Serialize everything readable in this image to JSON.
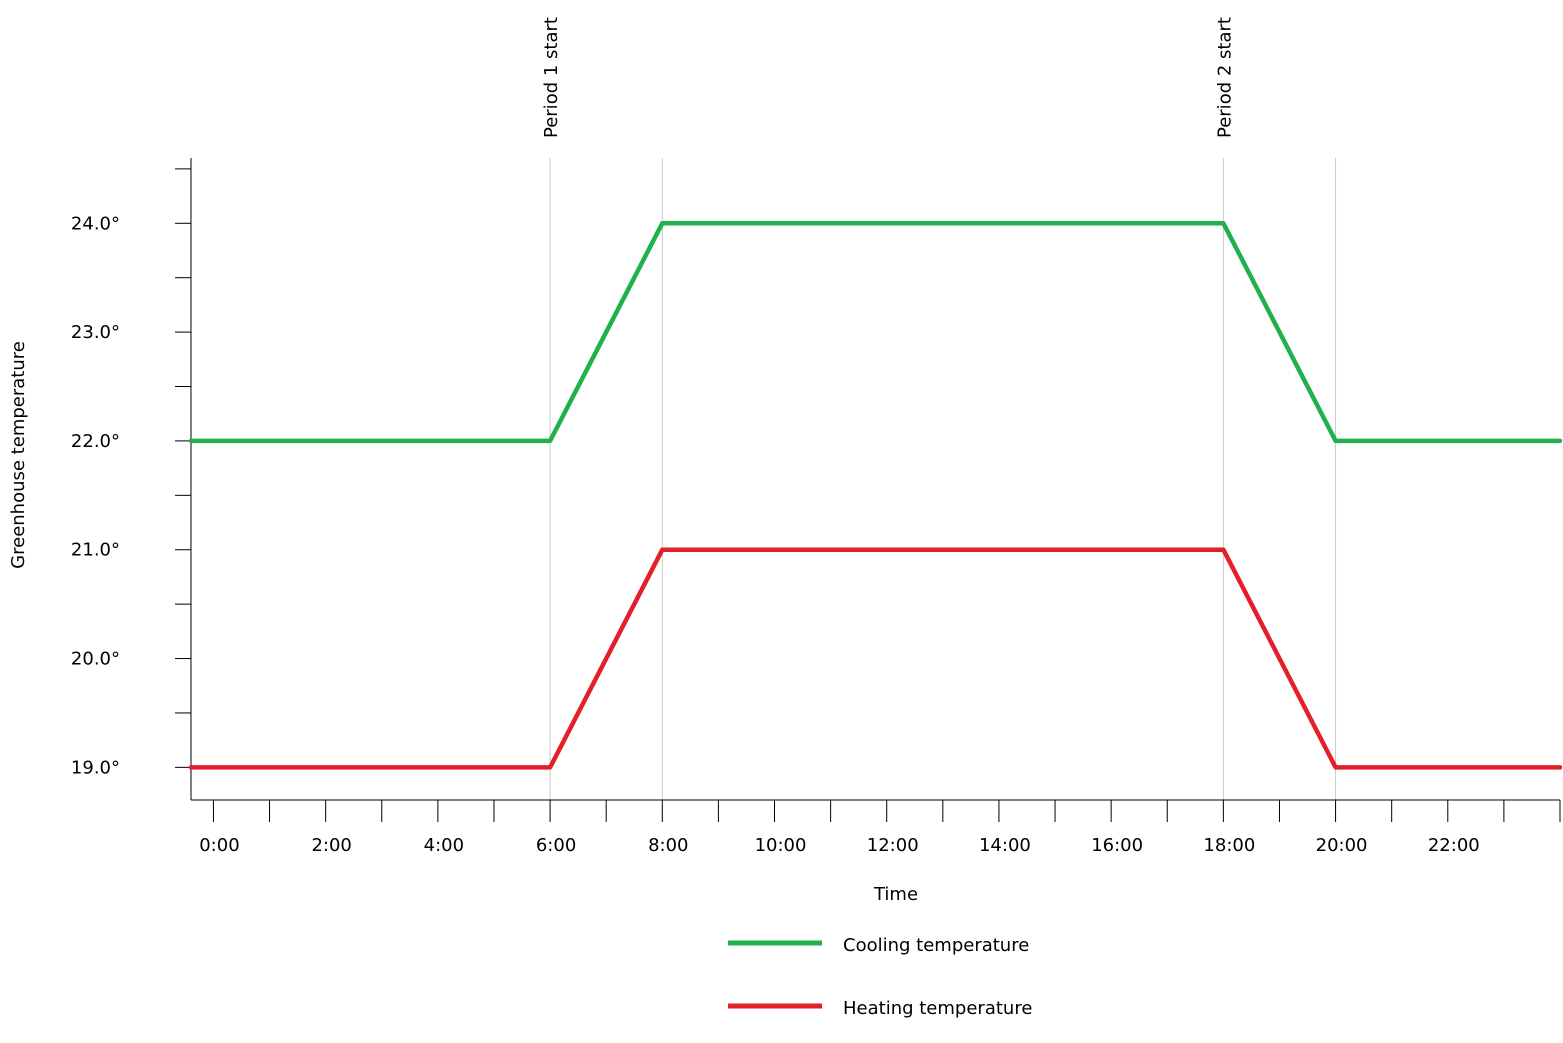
{
  "chart_data": {
    "type": "line",
    "x": [
      "0:00",
      "1:00",
      "2:00",
      "3:00",
      "4:00",
      "5:00",
      "6:00",
      "7:00",
      "8:00",
      "9:00",
      "10:00",
      "11:00",
      "12:00",
      "13:00",
      "14:00",
      "15:00",
      "16:00",
      "17:00",
      "18:00",
      "19:00",
      "20:00",
      "21:00",
      "22:00",
      "23:00"
    ],
    "x_tick_labels": [
      "0:00",
      "2:00",
      "4:00",
      "6:00",
      "8:00",
      "10:00",
      "12:00",
      "14:00",
      "16:00",
      "18:00",
      "20:00",
      "22:00"
    ],
    "y_tick_labels": [
      "19.0°",
      "20.0°",
      "21.0°",
      "22.0°",
      "23.0°",
      "24.0°"
    ],
    "y_ticks": [
      19,
      20,
      21,
      22,
      23,
      24
    ],
    "xlabel": "Time",
    "ylabel": "Greenhouse temperature",
    "ylim": [
      18.7,
      24.6
    ],
    "xlim": [
      -0.4,
      24.0
    ],
    "grid": false,
    "legend": "bottom",
    "series": [
      {
        "name": "Cooling temperature",
        "color": "#22b04b",
        "points": [
          [
            -0.4,
            22.0
          ],
          [
            6.0,
            22.0
          ],
          [
            8.0,
            24.0
          ],
          [
            18.0,
            24.0
          ],
          [
            20.0,
            22.0
          ],
          [
            24.0,
            22.0
          ]
        ]
      },
      {
        "name": "Heating temperature",
        "color": "#e3202a",
        "points": [
          [
            -0.4,
            19.0
          ],
          [
            6.0,
            19.0
          ],
          [
            8.0,
            21.0
          ],
          [
            18.0,
            21.0
          ],
          [
            20.0,
            19.0
          ],
          [
            24.0,
            19.0
          ]
        ]
      }
    ],
    "annotations": [
      {
        "x": 6.0,
        "label": "Period 1 start"
      },
      {
        "x": 8.0,
        "label": ""
      },
      {
        "x": 18.0,
        "label": "Period 2 start"
      },
      {
        "x": 20.0,
        "label": ""
      }
    ]
  }
}
